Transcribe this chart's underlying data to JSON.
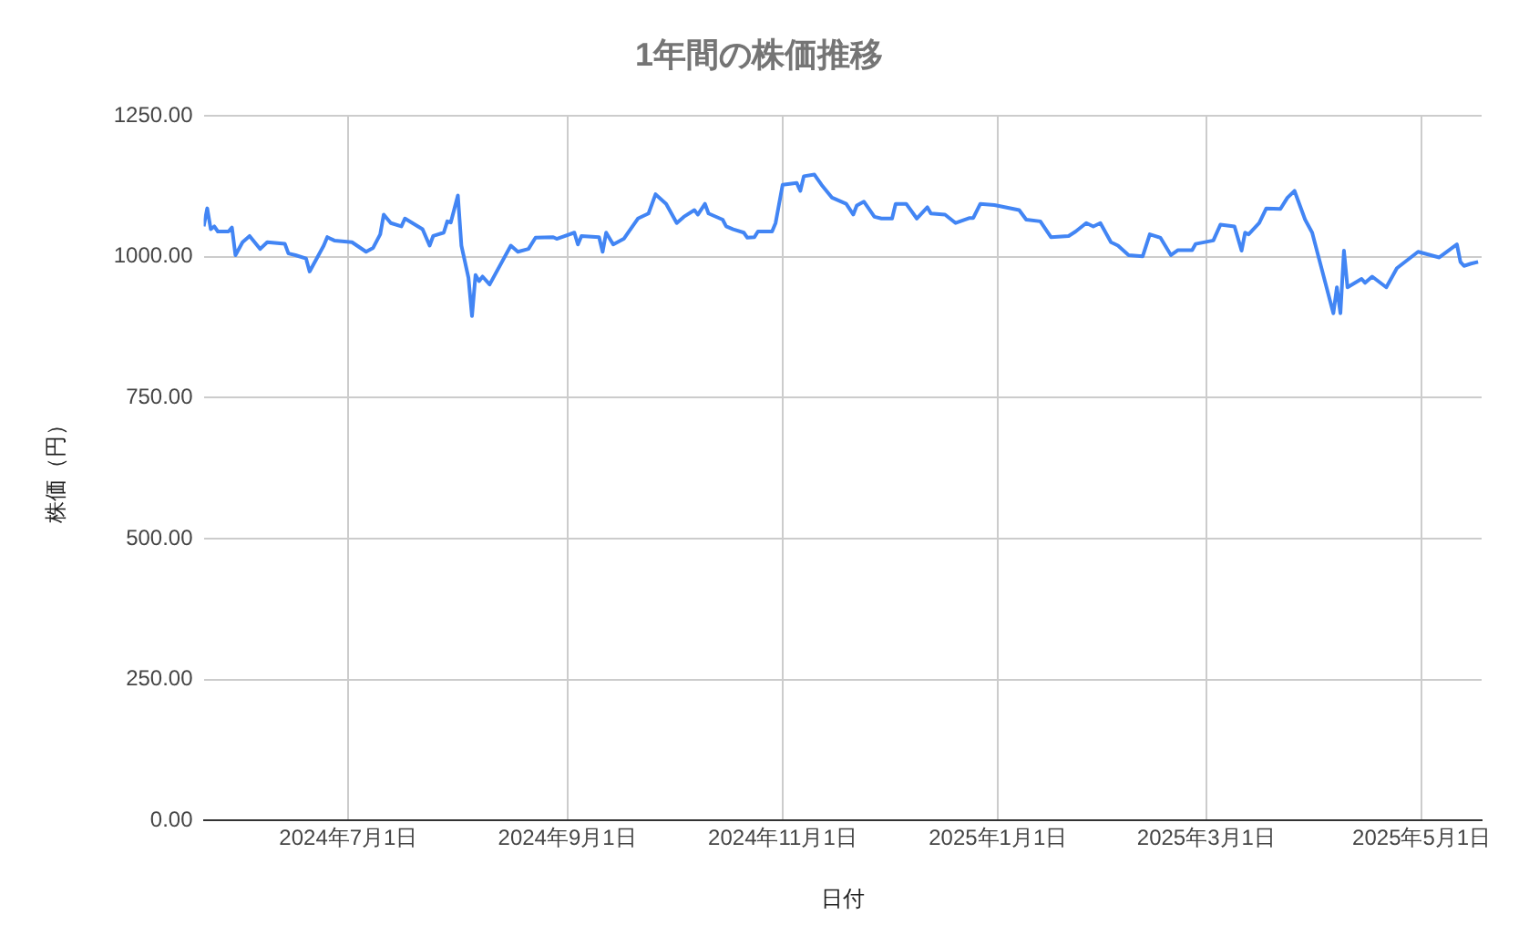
{
  "chart_data": {
    "type": "line",
    "title": "1年間の株価推移",
    "xlabel": "日付",
    "ylabel": "株価（円）",
    "x": [
      "2024-05-21",
      "2024-05-22",
      "2024-05-23",
      "2024-05-24",
      "2024-05-25",
      "2024-05-28",
      "2024-05-29",
      "2024-05-30",
      "2024-06-01",
      "2024-06-03",
      "2024-06-06",
      "2024-06-08",
      "2024-06-13",
      "2024-06-14",
      "2024-06-16",
      "2024-06-19",
      "2024-06-20",
      "2024-06-22",
      "2024-06-24",
      "2024-06-25",
      "2024-06-27",
      "2024-07-02",
      "2024-07-06",
      "2024-07-08",
      "2024-07-10",
      "2024-07-11",
      "2024-07-13",
      "2024-07-16",
      "2024-07-17",
      "2024-07-22",
      "2024-07-24",
      "2024-07-25",
      "2024-07-28",
      "2024-07-29",
      "2024-07-30",
      "2024-08-01",
      "2024-08-02",
      "2024-08-04",
      "2024-08-05",
      "2024-08-06",
      "2024-08-07",
      "2024-08-08",
      "2024-08-10",
      "2024-08-16",
      "2024-08-18",
      "2024-08-21",
      "2024-08-23",
      "2024-08-28",
      "2024-08-29",
      "2024-09-03",
      "2024-09-04",
      "2024-09-05",
      "2024-09-10",
      "2024-09-11",
      "2024-09-12",
      "2024-09-14",
      "2024-09-17",
      "2024-09-21",
      "2024-09-24",
      "2024-09-26",
      "2024-09-29",
      "2024-10-02",
      "2024-10-04",
      "2024-10-07",
      "2024-10-08",
      "2024-10-10",
      "2024-10-11",
      "2024-10-15",
      "2024-10-16",
      "2024-10-18",
      "2024-10-21",
      "2024-10-22",
      "2024-10-24",
      "2024-10-25",
      "2024-10-29",
      "2024-10-30",
      "2024-11-01",
      "2024-11-05",
      "2024-11-06",
      "2024-11-07",
      "2024-11-10",
      "2024-11-12",
      "2024-11-15",
      "2024-11-19",
      "2024-11-21",
      "2024-11-22",
      "2024-11-24",
      "2024-11-27",
      "2024-11-29",
      "2024-12-02",
      "2024-12-03",
      "2024-12-06",
      "2024-12-09",
      "2024-12-12",
      "2024-12-13",
      "2024-12-17",
      "2024-12-20",
      "2024-12-24",
      "2024-12-25",
      "2024-12-27",
      "2024-12-31",
      "2025-01-07",
      "2025-01-09",
      "2025-01-13",
      "2025-01-16",
      "2025-01-21",
      "2025-01-23",
      "2025-01-26",
      "2025-01-28",
      "2025-01-30",
      "2025-02-02",
      "2025-02-04",
      "2025-02-07",
      "2025-02-11",
      "2025-02-13",
      "2025-02-16",
      "2025-02-19",
      "2025-02-21",
      "2025-02-25",
      "2025-02-26",
      "2025-03-03",
      "2025-03-05",
      "2025-03-09",
      "2025-03-11",
      "2025-03-12",
      "2025-03-13",
      "2025-03-16",
      "2025-03-18",
      "2025-03-22",
      "2025-03-24",
      "2025-03-26",
      "2025-03-29",
      "2025-03-31",
      "2025-04-06",
      "2025-04-07",
      "2025-04-08",
      "2025-04-09",
      "2025-04-10",
      "2025-04-14",
      "2025-04-15",
      "2025-04-17",
      "2025-04-21",
      "2025-04-24",
      "2025-04-30",
      "2025-05-06",
      "2025-05-11",
      "2025-05-12",
      "2025-05-13",
      "2025-05-15",
      "2025-05-17"
    ],
    "series": [
      {
        "color": "#4285f4",
        "values": [
          1054,
          1086,
          1049,
          1054,
          1045,
          1045,
          1052,
          1003,
          1026,
          1037,
          1014,
          1026,
          1023,
          1006,
          1003,
          997,
          974,
          997,
          1020,
          1035,
          1029,
          1026,
          1009,
          1016,
          1040,
          1075,
          1060,
          1054,
          1068,
          1049,
          1020,
          1037,
          1043,
          1063,
          1061,
          1109,
          1020,
          963,
          895,
          968,
          957,
          965,
          951,
          1020,
          1009,
          1014,
          1034,
          1035,
          1032,
          1043,
          1022,
          1037,
          1035,
          1009,
          1043,
          1022,
          1032,
          1068,
          1077,
          1111,
          1094,
          1060,
          1071,
          1083,
          1075,
          1094,
          1077,
          1066,
          1054,
          1049,
          1043,
          1034,
          1035,
          1045,
          1045,
          1060,
          1128,
          1131,
          1117,
          1143,
          1146,
          1128,
          1105,
          1094,
          1075,
          1091,
          1098,
          1071,
          1068,
          1068,
          1094,
          1094,
          1068,
          1088,
          1077,
          1075,
          1060,
          1069,
          1069,
          1094,
          1092,
          1083,
          1066,
          1063,
          1035,
          1037,
          1045,
          1060,
          1054,
          1060,
          1026,
          1020,
          1003,
          1001,
          1040,
          1034,
          1003,
          1012,
          1012,
          1023,
          1029,
          1057,
          1054,
          1011,
          1043,
          1040,
          1060,
          1086,
          1085,
          1105,
          1117,
          1066,
          1043,
          900,
          946,
          900,
          1011,
          946,
          961,
          954,
          965,
          946,
          980,
          1009,
          999,
          1022,
          991,
          984,
          988,
          991
        ]
      }
    ],
    "xlim": [
      "2024-05-21",
      "2025-05-18"
    ],
    "xticks": [
      {
        "value": "2024-07-01",
        "label": "2024年7月1日"
      },
      {
        "value": "2024-09-01",
        "label": "2024年9月1日"
      },
      {
        "value": "2024-11-01",
        "label": "2024年11月1日"
      },
      {
        "value": "2025-01-01",
        "label": "2025年1月1日"
      },
      {
        "value": "2025-03-01",
        "label": "2025年3月1日"
      },
      {
        "value": "2025-05-01",
        "label": "2025年5月1日"
      }
    ],
    "ylim": [
      0,
      1250
    ],
    "yticks": [
      {
        "value": 0,
        "label": "0.00"
      },
      {
        "value": 250,
        "label": "250.00"
      },
      {
        "value": 500,
        "label": "500.00"
      },
      {
        "value": 750,
        "label": "750.00"
      },
      {
        "value": 1000,
        "label": "1000.00"
      },
      {
        "value": 1250,
        "label": "1250.00"
      }
    ],
    "grid": true,
    "legend": false,
    "marker": "none",
    "line_style": "solid"
  }
}
